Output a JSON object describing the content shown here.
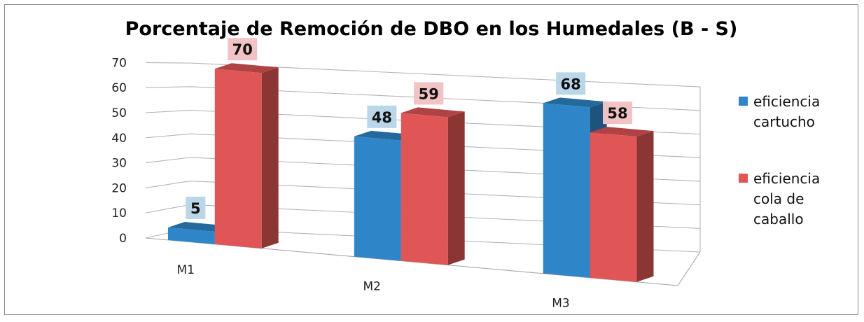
{
  "chart_data": {
    "type": "bar",
    "title": "Porcentaje de Remoción de DBO en los Humedales (B - S)",
    "categories": [
      "M1",
      "M2",
      "M3"
    ],
    "series": [
      {
        "name": "eficiencia cartucho",
        "values": [
          5,
          48,
          68
        ],
        "color": "#2e86c8",
        "label_bg": "#b9d7e9"
      },
      {
        "name": "eficiencia cola de caballo",
        "values": [
          70,
          59,
          58
        ],
        "color": "#e05556",
        "label_bg": "#f2c3c4"
      }
    ],
    "yticks": [
      "0",
      "10",
      "20",
      "30",
      "40",
      "50",
      "60",
      "70"
    ],
    "ylim": [
      0,
      70
    ],
    "xlabel": "",
    "ylabel": "",
    "grid": true,
    "legend": "right",
    "legend_lines": [
      [
        "eficiencia",
        "cartucho"
      ],
      [
        "eficiencia",
        "cola de",
        "caballo"
      ]
    ]
  }
}
